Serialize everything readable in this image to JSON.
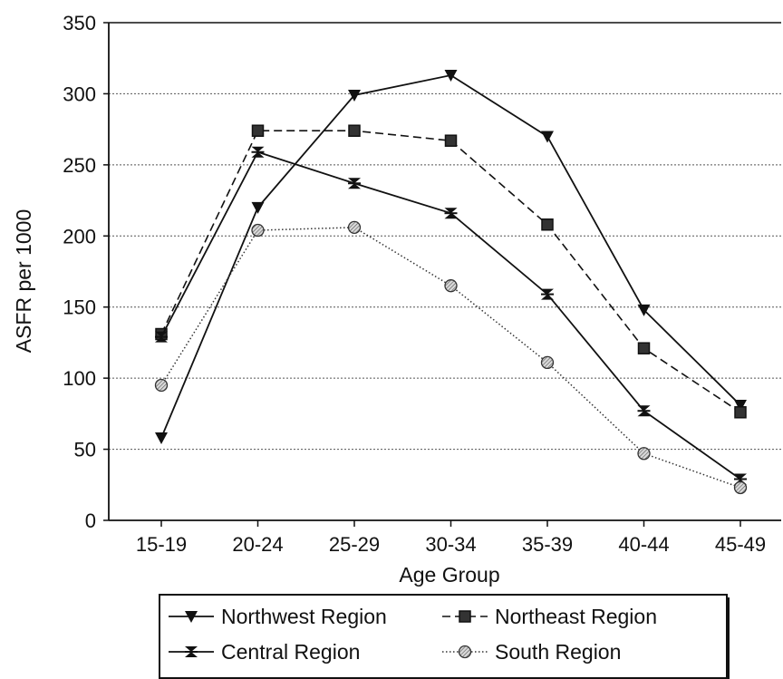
{
  "chart_data": {
    "type": "line",
    "title": "",
    "xlabel": "Age Group",
    "ylabel": "ASFR per 1000",
    "categories": [
      "15-19",
      "20-24",
      "25-29",
      "30-34",
      "35-39",
      "40-44",
      "45-49"
    ],
    "ylim": [
      0,
      350
    ],
    "yticks": [
      0,
      50,
      100,
      150,
      200,
      250,
      300,
      350
    ],
    "grid": "horizontal",
    "legend_position": "bottom",
    "series": [
      {
        "name": "Northwest Region",
        "marker": "triangle-down",
        "line_style": "solid",
        "values": [
          58,
          220,
          299,
          313,
          270,
          148,
          81
        ]
      },
      {
        "name": "Northeast Region",
        "marker": "square",
        "line_style": "dashed",
        "values": [
          131,
          274,
          274,
          267,
          208,
          121,
          76
        ]
      },
      {
        "name": "Central Region",
        "marker": "bowtie",
        "line_style": "solid",
        "values": [
          129,
          259,
          237,
          216,
          159,
          77,
          29
        ]
      },
      {
        "name": "South Region",
        "marker": "hatched-circle",
        "line_style": "dotted",
        "values": [
          95,
          204,
          206,
          165,
          111,
          47,
          23
        ]
      }
    ]
  }
}
